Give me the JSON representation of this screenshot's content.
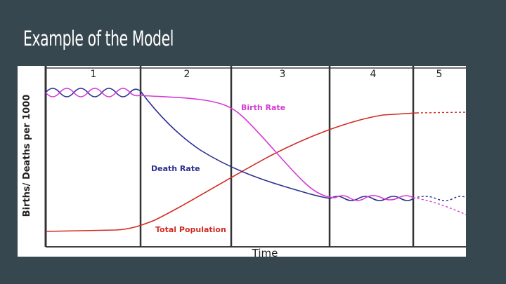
{
  "slide": {
    "title": "Example of the Model"
  },
  "diagram": {
    "stages": [
      "1",
      "2",
      "3",
      "4",
      "5"
    ],
    "y_axis_label": "Births/ Deaths per 1000",
    "x_axis_label": "Time",
    "curves": {
      "birth_rate": {
        "label": "Birth Rate",
        "color": "#d63ad6"
      },
      "death_rate": {
        "label": "Death Rate",
        "color": "#2c2f8f"
      },
      "total_population": {
        "label": "Total Population",
        "color": "#d22a20"
      }
    },
    "colors": {
      "background": "#37474f",
      "divider": "#333333"
    }
  }
}
